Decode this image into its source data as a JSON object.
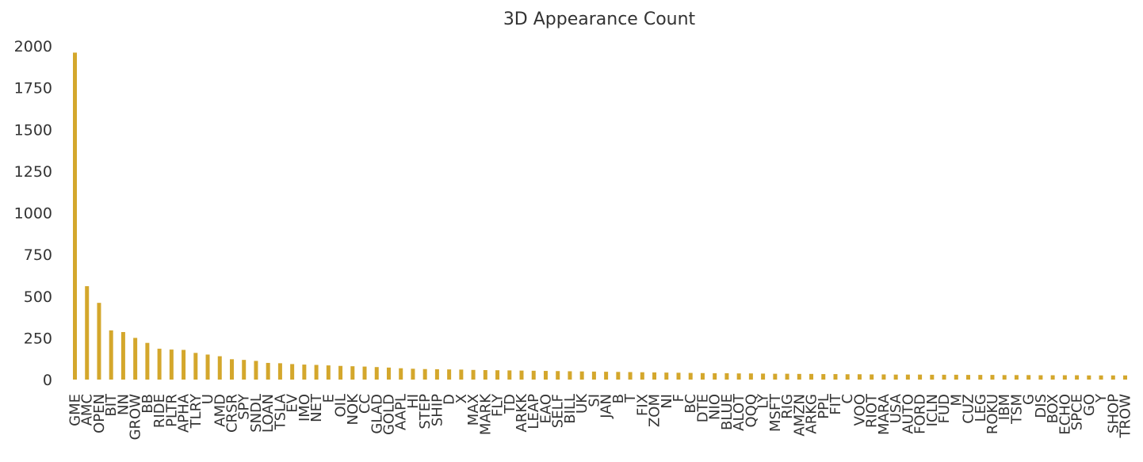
{
  "chart_data": {
    "type": "bar",
    "title": "3D Appearance Count",
    "xlabel": "",
    "ylabel": "",
    "ylim": [
      0,
      2000
    ],
    "yticks": [
      0,
      250,
      500,
      750,
      1000,
      1250,
      1500,
      1750,
      2000
    ],
    "grid": false,
    "legend": "none",
    "bar_color": "#d4a72c",
    "categories": [
      "GME",
      "AMC",
      "OPEN",
      "BIT",
      "NN",
      "GROW",
      "BB",
      "RIDE",
      "PLTR",
      "APHA",
      "TLRY",
      "U",
      "AMD",
      "CRSR",
      "SPY",
      "SNDL",
      "LOAN",
      "TSLA",
      "EV",
      "IMO",
      "NET",
      "E",
      "OIL",
      "NOK",
      "CC",
      "GLAD",
      "GOLD",
      "AAPL",
      "HI",
      "STEP",
      "SHIP",
      "D",
      "X",
      "MAX",
      "MARK",
      "FLY",
      "TD",
      "ARKK",
      "LEAP",
      "EAO",
      "SELF",
      "BILL",
      "UK",
      "SI",
      "JAN",
      "B",
      "T",
      "FIX",
      "ZOM",
      "NI",
      "F",
      "BC",
      "DTE",
      "NIO",
      "BLUE",
      "ALOT",
      "QQQ",
      "LY",
      "MSFT",
      "RIG",
      "AMZN",
      "ARKG",
      "PPL",
      "FIT",
      "C",
      "VOO",
      "RIOT",
      "MARA",
      "USA",
      "AUTO",
      "FORD",
      "ICLN",
      "FUD",
      "M",
      "CUZ",
      "LEG",
      "ROKU",
      "IBM",
      "TSM",
      "G",
      "DIS",
      "BOX",
      "ECHO",
      "SPCE",
      "GO",
      "Y",
      "SHOP",
      "TROW"
    ],
    "values": [
      1960,
      560,
      460,
      295,
      285,
      250,
      220,
      185,
      180,
      178,
      160,
      150,
      140,
      122,
      118,
      112,
      100,
      98,
      93,
      90,
      88,
      85,
      82,
      80,
      78,
      75,
      72,
      68,
      65,
      63,
      62,
      61,
      60,
      58,
      57,
      56,
      55,
      54,
      53,
      52,
      51,
      50,
      49,
      48,
      47,
      46,
      45,
      44,
      43,
      42,
      41,
      40,
      39,
      38,
      38,
      37,
      37,
      36,
      35,
      35,
      34,
      34,
      33,
      33,
      32,
      32,
      31,
      31,
      30,
      30,
      30,
      29,
      29,
      29,
      28,
      28,
      28,
      27,
      27,
      27,
      26,
      26,
      26,
      26,
      25,
      25,
      25,
      25
    ]
  }
}
